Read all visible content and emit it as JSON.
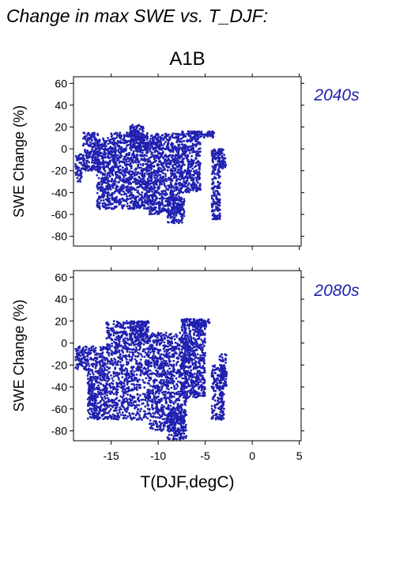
{
  "figure": {
    "title": "Change in max SWE vs. T_DJF:",
    "scenario": "A1B",
    "point_color": "#2020b0"
  },
  "chart_data": [
    {
      "type": "scatter",
      "panel_label": "2040s",
      "xlabel": "T(DJF,degC)",
      "ylabel": "SWE Change (%)",
      "xlim": [
        -19,
        5.2
      ],
      "ylim": [
        -89,
        66
      ],
      "x_ticks": [
        -15,
        -10,
        -5,
        0,
        5
      ],
      "y_ticks": [
        60,
        40,
        20,
        0,
        -20,
        -40,
        -60,
        -80
      ],
      "grid": false,
      "clusters": [
        {
          "x": [
            -18.8,
            -18.0
          ],
          "y": [
            -30,
            -5
          ]
        },
        {
          "x": [
            -18.0,
            -16.3
          ],
          "y": [
            -20,
            15
          ]
        },
        {
          "x": [
            -16.5,
            -15.2
          ],
          "y": [
            -55,
            10
          ]
        },
        {
          "x": [
            -15.2,
            -11.0
          ],
          "y": [
            -55,
            15
          ]
        },
        {
          "x": [
            -13.0,
            -11.5
          ],
          "y": [
            0,
            22
          ]
        },
        {
          "x": [
            -11.0,
            -7.5
          ],
          "y": [
            -60,
            14
          ]
        },
        {
          "x": [
            -9.0,
            -7.2
          ],
          "y": [
            -68,
            -45
          ]
        },
        {
          "x": [
            -7.5,
            -5.5
          ],
          "y": [
            -40,
            16
          ]
        },
        {
          "x": [
            -6.5,
            -4.0
          ],
          "y": [
            10,
            16
          ]
        },
        {
          "x": [
            -4.3,
            -3.4
          ],
          "y": [
            -65,
            0
          ]
        },
        {
          "x": [
            -3.6,
            -2.8
          ],
          "y": [
            -18,
            0
          ]
        }
      ]
    },
    {
      "type": "scatter",
      "panel_label": "2080s",
      "xlabel": "T(DJF,degC)",
      "ylabel": "SWE Change (%)",
      "xlim": [
        -19,
        5.2
      ],
      "ylim": [
        -89,
        66
      ],
      "x_ticks": [
        -15,
        -10,
        -5,
        0,
        5
      ],
      "y_ticks": [
        60,
        40,
        20,
        0,
        -20,
        -40,
        -60,
        -80
      ],
      "grid": false,
      "clusters": [
        {
          "x": [
            -18.8,
            -17.5
          ],
          "y": [
            -25,
            -3
          ]
        },
        {
          "x": [
            -17.5,
            -15.5
          ],
          "y": [
            -70,
            -3
          ]
        },
        {
          "x": [
            -15.5,
            -11.0
          ],
          "y": [
            -70,
            20
          ]
        },
        {
          "x": [
            -13.0,
            -11.0
          ],
          "y": [
            5,
            20
          ]
        },
        {
          "x": [
            -11.0,
            -7.0
          ],
          "y": [
            -80,
            10
          ]
        },
        {
          "x": [
            -9.0,
            -7.0
          ],
          "y": [
            -88,
            -60
          ]
        },
        {
          "x": [
            -7.5,
            -5.0
          ],
          "y": [
            -50,
            22
          ]
        },
        {
          "x": [
            -7.5,
            -4.5
          ],
          "y": [
            15,
            22
          ]
        },
        {
          "x": [
            -4.3,
            -3.0
          ],
          "y": [
            -70,
            -20
          ]
        },
        {
          "x": [
            -3.5,
            -2.7
          ],
          "y": [
            -40,
            -10
          ]
        }
      ]
    }
  ]
}
